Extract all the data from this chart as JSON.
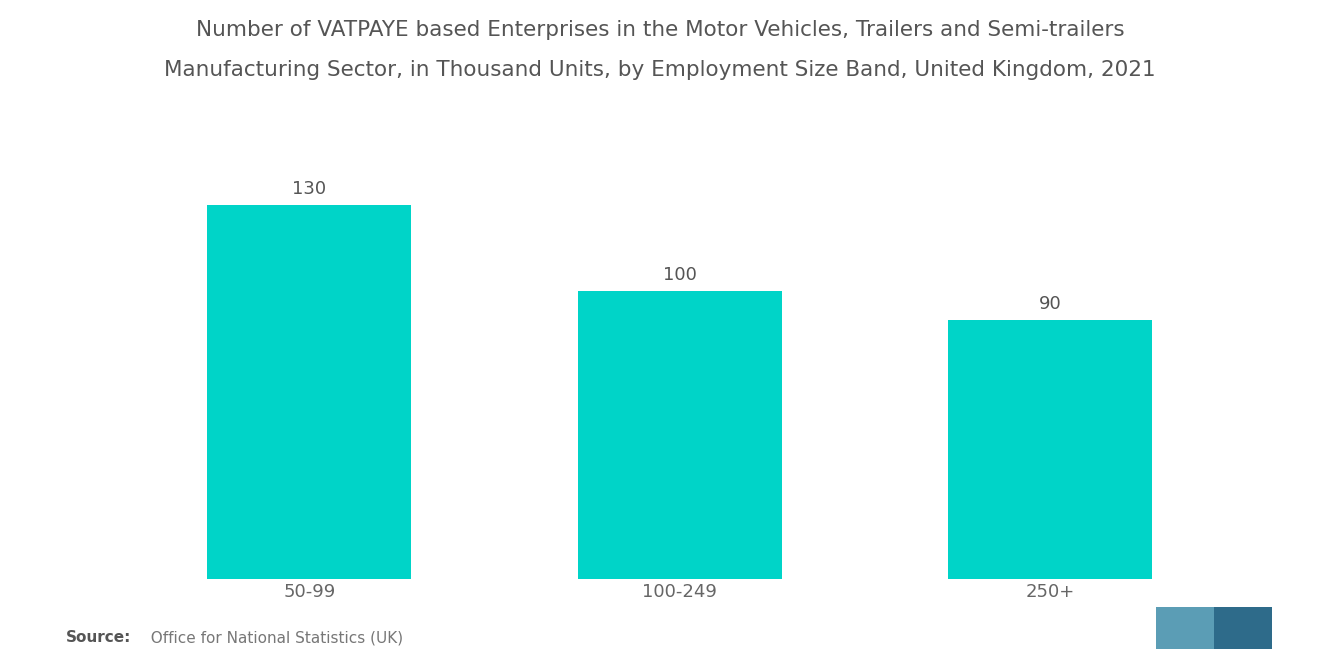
{
  "title_line1": "Number of VATPAYE based Enterprises in the Motor Vehicles, Trailers and Semi-trailers",
  "title_line2": "Manufacturing Sector, in Thousand Units, by Employment Size Band, United Kingdom, 2021",
  "categories": [
    "50-99",
    "100-249",
    "250+"
  ],
  "values": [
    130,
    100,
    90
  ],
  "bar_color": "#00D4C8",
  "background_color": "#ffffff",
  "title_fontsize": 15.5,
  "label_fontsize": 13,
  "value_fontsize": 13,
  "source_bold": "Source:",
  "source_normal": "  Office for National Statistics (UK)",
  "ylim": [
    0,
    155
  ],
  "bar_width": 0.55
}
